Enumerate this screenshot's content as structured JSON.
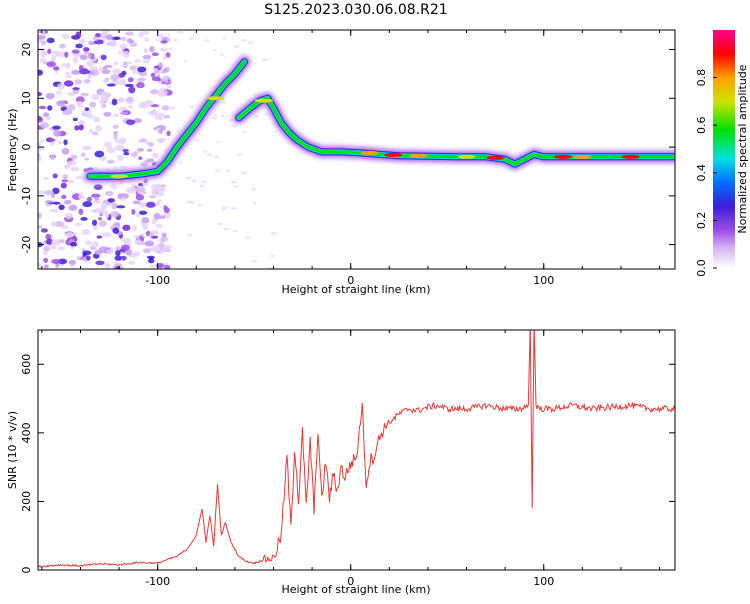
{
  "figure": {
    "title": "S125.2023.030.06.08.R21"
  },
  "colors": {
    "snr_line": "#e53935",
    "colormap": [
      "#ffffff",
      "#d9b8f5",
      "#9b4de8",
      "#3b1fd8",
      "#0070ff",
      "#00e0e0",
      "#00e000",
      "#d0e000",
      "#ffa000",
      "#ff0000",
      "#ff0090"
    ]
  },
  "chart_data": [
    {
      "type": "heatmap",
      "title": "S125.2023.030.06.08.R21",
      "xlabel": "Height of straight line (km)",
      "ylabel": "Frequency (Hz)",
      "xlim": [
        -162,
        168
      ],
      "ylim": [
        -25,
        24
      ],
      "x_ticks": [
        "-100",
        "0",
        "100"
      ],
      "y_ticks": [
        "-20",
        "-10",
        "0",
        "10",
        "20"
      ],
      "colorbar": {
        "label": "Normalized spectral amplitude",
        "ticks": [
          "0.0",
          "0.2",
          "0.4",
          "0.6",
          "0.8"
        ],
        "range": [
          0,
          1
        ]
      },
      "ridges": [
        {
          "x": [
            -135,
            -120,
            -108,
            -100,
            -95,
            -90,
            -85,
            -80,
            -75,
            -70,
            -65,
            -60,
            -55
          ],
          "y": [
            -6,
            -6,
            -5.5,
            -5,
            -3,
            0,
            2.5,
            5,
            8,
            10.5,
            13,
            15,
            17.5
          ]
        },
        {
          "x": [
            -58,
            -52,
            -47,
            -43,
            -40,
            -36,
            -32,
            -28,
            -22,
            -15,
            -5,
            5,
            15,
            25,
            40,
            55,
            70,
            80,
            85,
            90,
            95,
            100,
            120,
            145,
            168
          ],
          "y": [
            6,
            8,
            9.5,
            10,
            8,
            5,
            3,
            1.5,
            0,
            -1,
            -1,
            -1.2,
            -1.5,
            -1.8,
            -1.9,
            -2,
            -2,
            -2.5,
            -3.5,
            -2.5,
            -1.5,
            -2,
            -2,
            -2,
            -2
          ]
        }
      ]
    },
    {
      "type": "line",
      "xlabel": "Height of straight line (km)",
      "ylabel": "SNR (10 * v/v)",
      "xlim": [
        -162,
        168
      ],
      "ylim": [
        0,
        700
      ],
      "x_ticks": [
        "-100",
        "0",
        "100"
      ],
      "y_ticks": [
        "0",
        "200",
        "400",
        "600"
      ],
      "series": [
        {
          "x": [
            -162,
            -150,
            -140,
            -130,
            -120,
            -110,
            -100,
            -95,
            -90,
            -85,
            -80,
            -77,
            -75,
            -73,
            -71,
            -69,
            -67,
            -65,
            -62,
            -58,
            -54,
            -50,
            -45,
            -40,
            -36,
            -33,
            -31,
            -29,
            -27,
            -25,
            -23,
            -21,
            -19,
            -17,
            -15,
            -13,
            -11,
            -9,
            -7,
            -5,
            -3,
            0,
            3,
            6,
            8,
            10,
            12,
            14,
            16,
            18,
            20,
            25,
            30,
            35,
            40,
            45,
            50,
            60,
            70,
            80,
            88,
            92,
            93,
            94,
            95,
            96,
            98,
            105,
            115,
            125,
            135,
            145,
            155,
            168
          ],
          "y": [
            10,
            15,
            12,
            18,
            15,
            22,
            20,
            30,
            40,
            60,
            100,
            180,
            80,
            160,
            70,
            250,
            100,
            140,
            80,
            40,
            25,
            20,
            30,
            35,
            100,
            330,
            120,
            360,
            200,
            400,
            180,
            380,
            170,
            410,
            200,
            320,
            210,
            280,
            230,
            300,
            270,
            310,
            330,
            480,
            250,
            320,
            330,
            370,
            400,
            420,
            430,
            455,
            470,
            465,
            475,
            480,
            470,
            470,
            480,
            470,
            470,
            480,
            720,
            180,
            720,
            480,
            470,
            470,
            480,
            470,
            475,
            480,
            470,
            470
          ]
        }
      ]
    }
  ]
}
